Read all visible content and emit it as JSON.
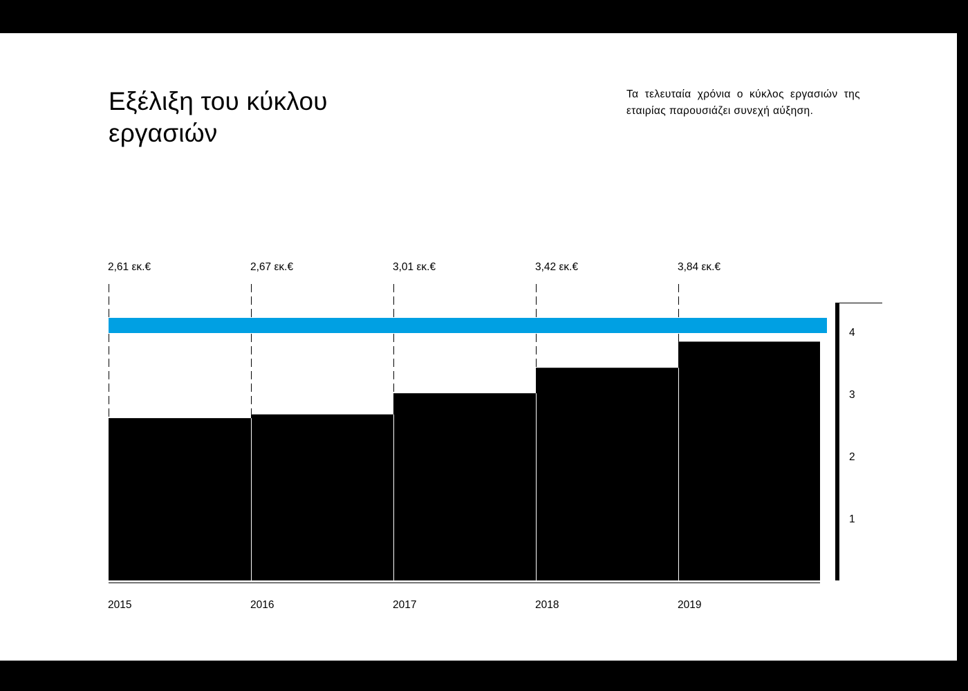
{
  "header": {
    "title": "Εξέλιξη του κύκλου εργασιών",
    "subtitle": "Τα τελευταία χρόνια ο κύκλος εργασιών της εταιρίας παρουσιάζει συνεχή αύξηση."
  },
  "colors": {
    "bars": "#000000",
    "highlight_band": "#00a0e3",
    "background": "#ffffff",
    "frame": "#000000"
  },
  "chart_data": {
    "type": "bar",
    "categories": [
      "2015",
      "2016",
      "2017",
      "2018",
      "2019"
    ],
    "values": [
      2.61,
      2.67,
      3.01,
      3.42,
      3.84
    ],
    "data_labels": [
      "2,61 εκ.€",
      "2,67 εκ.€",
      "3,01 εκ.€",
      "3,42 εκ.€",
      "3,84 εκ.€"
    ],
    "y_ticks": [
      "1",
      "2",
      "3",
      "4"
    ],
    "y_axis_position": "right",
    "reference_band_value": 4.1,
    "legend": "none",
    "grid": false
  }
}
